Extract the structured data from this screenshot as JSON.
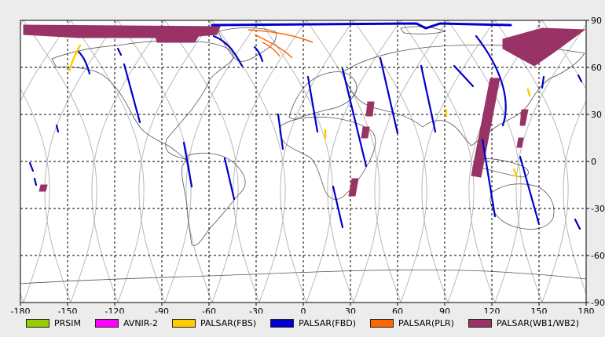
{
  "map": {
    "projection": "equirectangular",
    "x_ticks": [
      "-180",
      "-150",
      "-120",
      "-90",
      "-60",
      "-30",
      "0",
      "30",
      "60",
      "90",
      "120",
      "150",
      "180"
    ],
    "y_ticks": [
      "90",
      "60",
      "30",
      "0",
      "-30",
      "-60",
      "-90"
    ],
    "colors": {
      "background": "#ececec",
      "plot_bg": "#ffffff",
      "coastline": "#555555",
      "orbit_track": "#b8b8b8",
      "grid": "#000000"
    }
  },
  "legend": [
    {
      "label": "PRSIM",
      "color": "#99cc00"
    },
    {
      "label": "AVNIR-2",
      "color": "#ff00ff"
    },
    {
      "label": "PALSAR(FBS)",
      "color": "#ffcc00"
    },
    {
      "label": "PALSAR(FBD)",
      "color": "#0000cc"
    },
    {
      "label": "PALSAR(PLR)",
      "color": "#ff6600"
    },
    {
      "label": "PALSAR(WB1/WB2)",
      "color": "#993366"
    }
  ]
}
